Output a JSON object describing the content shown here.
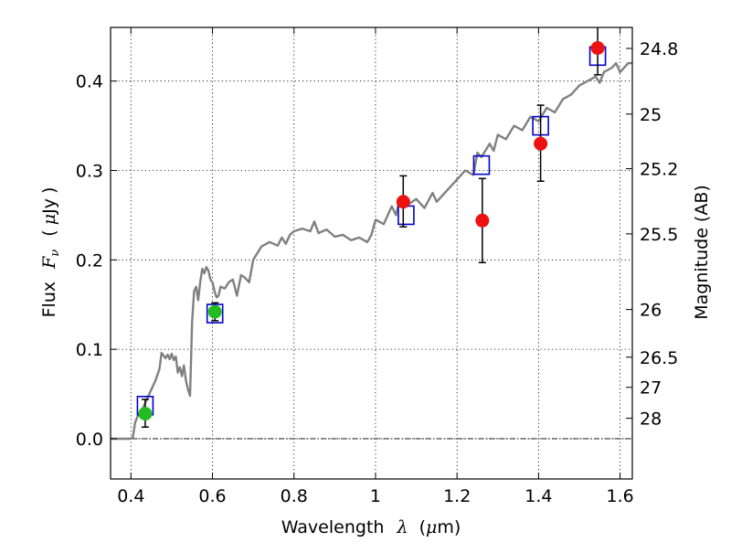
{
  "chart_data": {
    "type": "scatter",
    "xlabel": {
      "prefix": "Wavelength",
      "symbol": "λ",
      "unit_open": "(",
      "unit_mu": "μ",
      "unit_rest": "m)"
    },
    "ylabel": {
      "prefix": "Flux",
      "symbol": "F",
      "subscript": "ν",
      "unit_open": "(",
      "unit_mu": "μ",
      "unit_rest": "Jy",
      "unit_close": ")"
    },
    "y2label": "Magnitude (AB)",
    "xlim": [
      0.35,
      1.63
    ],
    "ylim": [
      -0.045,
      0.46
    ],
    "xticks": [
      0.4,
      0.6,
      0.8,
      1.0,
      1.2,
      1.4,
      1.6
    ],
    "xtick_labels": [
      "0.4",
      "0.6",
      "0.8",
      "1",
      "1.2",
      "1.4",
      "1.6"
    ],
    "yticks": [
      0.0,
      0.1,
      0.2,
      0.3,
      0.4
    ],
    "ytick_labels": [
      "0.0",
      "0.1",
      "0.2",
      "0.3",
      "0.4"
    ],
    "y2ticks": [
      {
        "label": "24.8",
        "flux": 0.4365
      },
      {
        "label": "25",
        "flux": 0.3631
      },
      {
        "label": "25.2",
        "flux": 0.302
      },
      {
        "label": "25.5",
        "flux": 0.2291
      },
      {
        "label": "26",
        "flux": 0.1445
      },
      {
        "label": "26.5",
        "flux": 0.0912
      },
      {
        "label": "27",
        "flux": 0.0575
      },
      {
        "label": "28",
        "flux": 0.0229
      }
    ],
    "grid": true,
    "zero_line": true,
    "colors": {
      "model": "#808080",
      "model_photometry": "#0000cc",
      "detection_green": "#22bb22",
      "detection_red": "#ee1111",
      "errorbar": "#000000"
    },
    "model_spectrum": {
      "x": [
        0.35,
        0.36,
        0.37,
        0.38,
        0.39,
        0.4,
        0.405,
        0.41,
        0.42,
        0.43,
        0.44,
        0.45,
        0.46,
        0.47,
        0.475,
        0.48,
        0.485,
        0.49,
        0.495,
        0.5,
        0.505,
        0.51,
        0.515,
        0.52,
        0.525,
        0.53,
        0.535,
        0.54,
        0.545,
        0.55,
        0.555,
        0.56,
        0.565,
        0.57,
        0.575,
        0.58,
        0.585,
        0.59,
        0.595,
        0.6,
        0.605,
        0.61,
        0.615,
        0.62,
        0.63,
        0.64,
        0.65,
        0.66,
        0.67,
        0.68,
        0.69,
        0.7,
        0.72,
        0.74,
        0.76,
        0.77,
        0.78,
        0.79,
        0.8,
        0.82,
        0.84,
        0.85,
        0.86,
        0.88,
        0.9,
        0.92,
        0.94,
        0.96,
        0.98,
        0.99,
        1.0,
        1.02,
        1.04,
        1.05,
        1.06,
        1.08,
        1.1,
        1.12,
        1.14,
        1.15,
        1.16,
        1.18,
        1.2,
        1.22,
        1.24,
        1.25,
        1.26,
        1.28,
        1.29,
        1.3,
        1.32,
        1.34,
        1.36,
        1.38,
        1.4,
        1.42,
        1.44,
        1.46,
        1.48,
        1.5,
        1.52,
        1.54,
        1.55,
        1.56,
        1.58,
        1.59,
        1.6,
        1.62,
        1.63
      ],
      "y": [
        0.0,
        0.0,
        0.0,
        0.0,
        0.0,
        0.0,
        0.002,
        0.018,
        0.029,
        0.035,
        0.045,
        0.055,
        0.065,
        0.078,
        0.096,
        0.093,
        0.09,
        0.094,
        0.089,
        0.095,
        0.088,
        0.092,
        0.074,
        0.08,
        0.07,
        0.082,
        0.065,
        0.055,
        0.048,
        0.13,
        0.165,
        0.17,
        0.155,
        0.175,
        0.19,
        0.185,
        0.192,
        0.188,
        0.178,
        0.175,
        0.165,
        0.158,
        0.16,
        0.17,
        0.168,
        0.175,
        0.178,
        0.16,
        0.183,
        0.18,
        0.175,
        0.2,
        0.215,
        0.22,
        0.216,
        0.225,
        0.218,
        0.228,
        0.232,
        0.235,
        0.232,
        0.243,
        0.23,
        0.234,
        0.226,
        0.228,
        0.222,
        0.225,
        0.22,
        0.228,
        0.245,
        0.24,
        0.26,
        0.25,
        0.27,
        0.262,
        0.268,
        0.258,
        0.275,
        0.265,
        0.27,
        0.28,
        0.29,
        0.3,
        0.295,
        0.32,
        0.315,
        0.33,
        0.322,
        0.34,
        0.335,
        0.35,
        0.345,
        0.36,
        0.355,
        0.37,
        0.365,
        0.38,
        0.385,
        0.395,
        0.4,
        0.405,
        0.398,
        0.41,
        0.415,
        0.42,
        0.41,
        0.42,
        0.42
      ]
    },
    "model_photometry": {
      "x": [
        0.435,
        0.606,
        1.075,
        1.26,
        1.405,
        1.545
      ],
      "y": [
        0.037,
        0.14,
        0.25,
        0.306,
        0.35,
        0.428
      ]
    },
    "observed": [
      {
        "x": 0.435,
        "y": 0.028,
        "err_low": 0.015,
        "err_high": 0.016,
        "color": "green"
      },
      {
        "x": 0.606,
        "y": 0.142,
        "err_low": 0.01,
        "err_high": 0.01,
        "color": "green"
      },
      {
        "x": 1.068,
        "y": 0.265,
        "err_low": 0.028,
        "err_high": 0.029,
        "color": "red"
      },
      {
        "x": 1.262,
        "y": 0.244,
        "err_low": 0.047,
        "err_high": 0.047,
        "color": "red"
      },
      {
        "x": 1.405,
        "y": 0.33,
        "err_low": 0.042,
        "err_high": 0.043,
        "color": "red"
      },
      {
        "x": 1.545,
        "y": 0.437,
        "err_low": 0.03,
        "err_high": 0.03,
        "color": "red"
      }
    ]
  }
}
